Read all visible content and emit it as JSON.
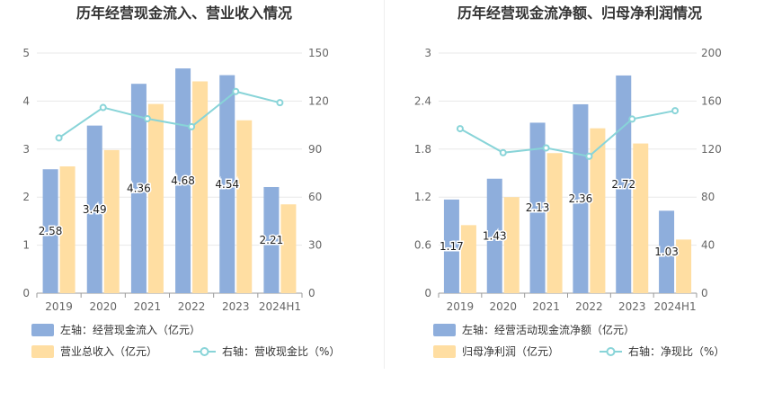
{
  "chart_data": [
    {
      "type": "bar",
      "title": "历年经营现金流入、营业收入情况",
      "categories": [
        "2019",
        "2020",
        "2021",
        "2022",
        "2023",
        "2024H1"
      ],
      "series": [
        {
          "name": "左轴：经营现金流入（亿元）",
          "axis": "left",
          "kind": "bar",
          "color": "#8eaedc",
          "values": [
            2.58,
            3.49,
            4.36,
            4.68,
            4.54,
            2.21
          ],
          "labels": [
            "2.58",
            "3.49",
            "4.36",
            "4.68",
            "4.54",
            "2.21"
          ]
        },
        {
          "name": "营业总收入（亿元）",
          "axis": "left",
          "kind": "bar",
          "color": "#ffdea2",
          "values": [
            2.64,
            2.98,
            3.94,
            4.41,
            3.6,
            1.85
          ]
        },
        {
          "name": "右轴：营收现金比（%）",
          "axis": "right",
          "kind": "line",
          "color": "#88d4d8",
          "values": [
            97,
            116,
            109,
            104,
            126,
            119
          ]
        }
      ],
      "y_left": {
        "min": 0,
        "max": 5,
        "ticks": [
          "0",
          "1",
          "2",
          "3",
          "4",
          "5"
        ]
      },
      "y_right": {
        "min": 0,
        "max": 150,
        "ticks": [
          "0",
          "30",
          "60",
          "90",
          "120",
          "150"
        ]
      },
      "grid": true,
      "legend_position": "bottom-left"
    },
    {
      "type": "bar",
      "title": "历年经营现金流净额、归母净利润情况",
      "categories": [
        "2019",
        "2020",
        "2021",
        "2022",
        "2023",
        "2024H1"
      ],
      "series": [
        {
          "name": "左轴：经营活动现金流净额（亿元）",
          "axis": "left",
          "kind": "bar",
          "color": "#8eaedc",
          "values": [
            1.17,
            1.43,
            2.13,
            2.36,
            2.72,
            1.03
          ],
          "labels": [
            "1.17",
            "1.43",
            "2.13",
            "2.36",
            "2.72",
            "1.03"
          ]
        },
        {
          "name": "归母净利润（亿元）",
          "axis": "left",
          "kind": "bar",
          "color": "#ffdea2",
          "values": [
            0.85,
            1.2,
            1.75,
            2.06,
            1.87,
            0.67
          ]
        },
        {
          "name": "右轴：净现比（%）",
          "axis": "right",
          "kind": "line",
          "color": "#88d4d8",
          "values": [
            137,
            117,
            121,
            114,
            145,
            152
          ]
        }
      ],
      "y_left": {
        "min": 0,
        "max": 3,
        "ticks": [
          "0",
          "0.6",
          "1.2",
          "1.8",
          "2.4",
          "3"
        ]
      },
      "y_right": {
        "min": 0,
        "max": 200,
        "ticks": [
          "0",
          "40",
          "80",
          "120",
          "160",
          "200"
        ]
      },
      "grid": true,
      "legend_position": "bottom-left"
    }
  ]
}
